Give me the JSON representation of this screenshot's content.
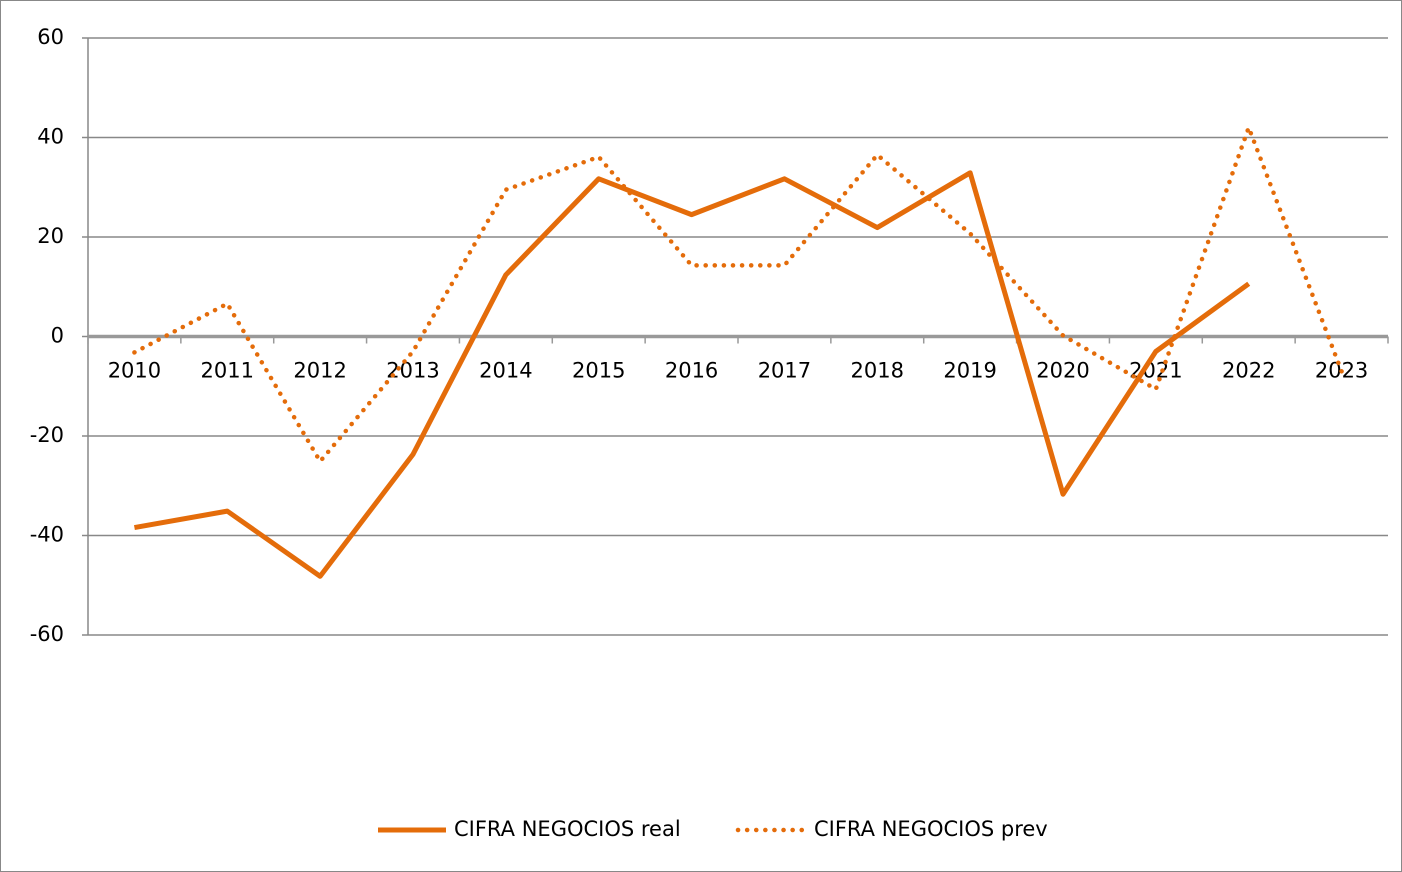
{
  "chart_data": {
    "type": "line",
    "categories": [
      "2010",
      "2011",
      "2012",
      "2013",
      "2014",
      "2015",
      "2016",
      "2017",
      "2018",
      "2019",
      "2020",
      "2021",
      "2022",
      "2023"
    ],
    "series": [
      {
        "name": "CIFRA NEGOCIOS real",
        "color": "#e46c0a",
        "style": "solid",
        "values": [
          -38.4,
          -35.1,
          -48.2,
          -23.7,
          12.4,
          31.7,
          24.5,
          31.7,
          21.9,
          32.9,
          -31.7,
          -3,
          10.6,
          null
        ]
      },
      {
        "name": "CIFRA NEGOCIOS prev",
        "color": "#e46c0a",
        "style": "dotted",
        "values": [
          -3.2,
          6.6,
          -25.1,
          -3,
          29.5,
          36.1,
          14.3,
          14.3,
          36.5,
          20.7,
          0.2,
          -10.6,
          42,
          -7
        ]
      }
    ],
    "ylim": [
      -60,
      60
    ],
    "yticks": [
      -60,
      -40,
      -20,
      0,
      20,
      40,
      60
    ],
    "grid": true,
    "legend": "bottom"
  }
}
